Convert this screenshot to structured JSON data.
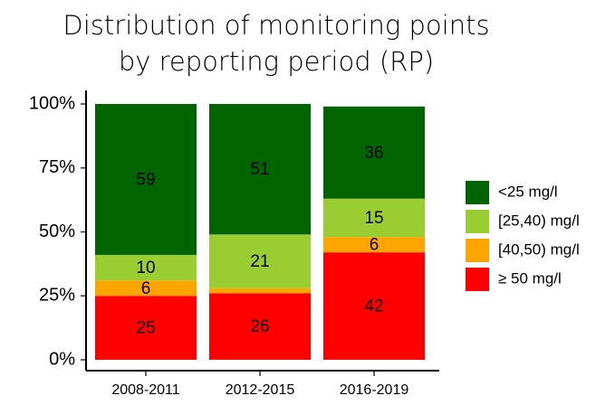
{
  "chart_data": {
    "type": "stacked_bar",
    "title": "Distribution of monitoring points by reporting period (RP)",
    "categories": [
      "2008-2011",
      "2012-2015",
      "2016-2019"
    ],
    "series": [
      {
        "name": "≥ 50 mg/l",
        "color": "#ff0000",
        "values": [
          25,
          26,
          42
        ]
      },
      {
        "name": "[40,50) mg/l",
        "color": "#ffa500",
        "values": [
          6,
          2,
          6
        ],
        "value_labels": [
          "6",
          null,
          "6"
        ]
      },
      {
        "name": "[25,40) mg/l",
        "color": "#9acd32",
        "values": [
          10,
          21,
          15
        ]
      },
      {
        "name": "<25 mg/l",
        "color": "#006400",
        "values": [
          59,
          51,
          36
        ]
      }
    ],
    "ylim": [
      0,
      100
    ],
    "yticks": [
      {
        "value": 0,
        "label": "0%"
      },
      {
        "value": 25,
        "label": "25%"
      },
      {
        "value": 50,
        "label": "50%"
      },
      {
        "value": 75,
        "label": "75%"
      },
      {
        "value": 100,
        "label": "100%"
      }
    ]
  }
}
